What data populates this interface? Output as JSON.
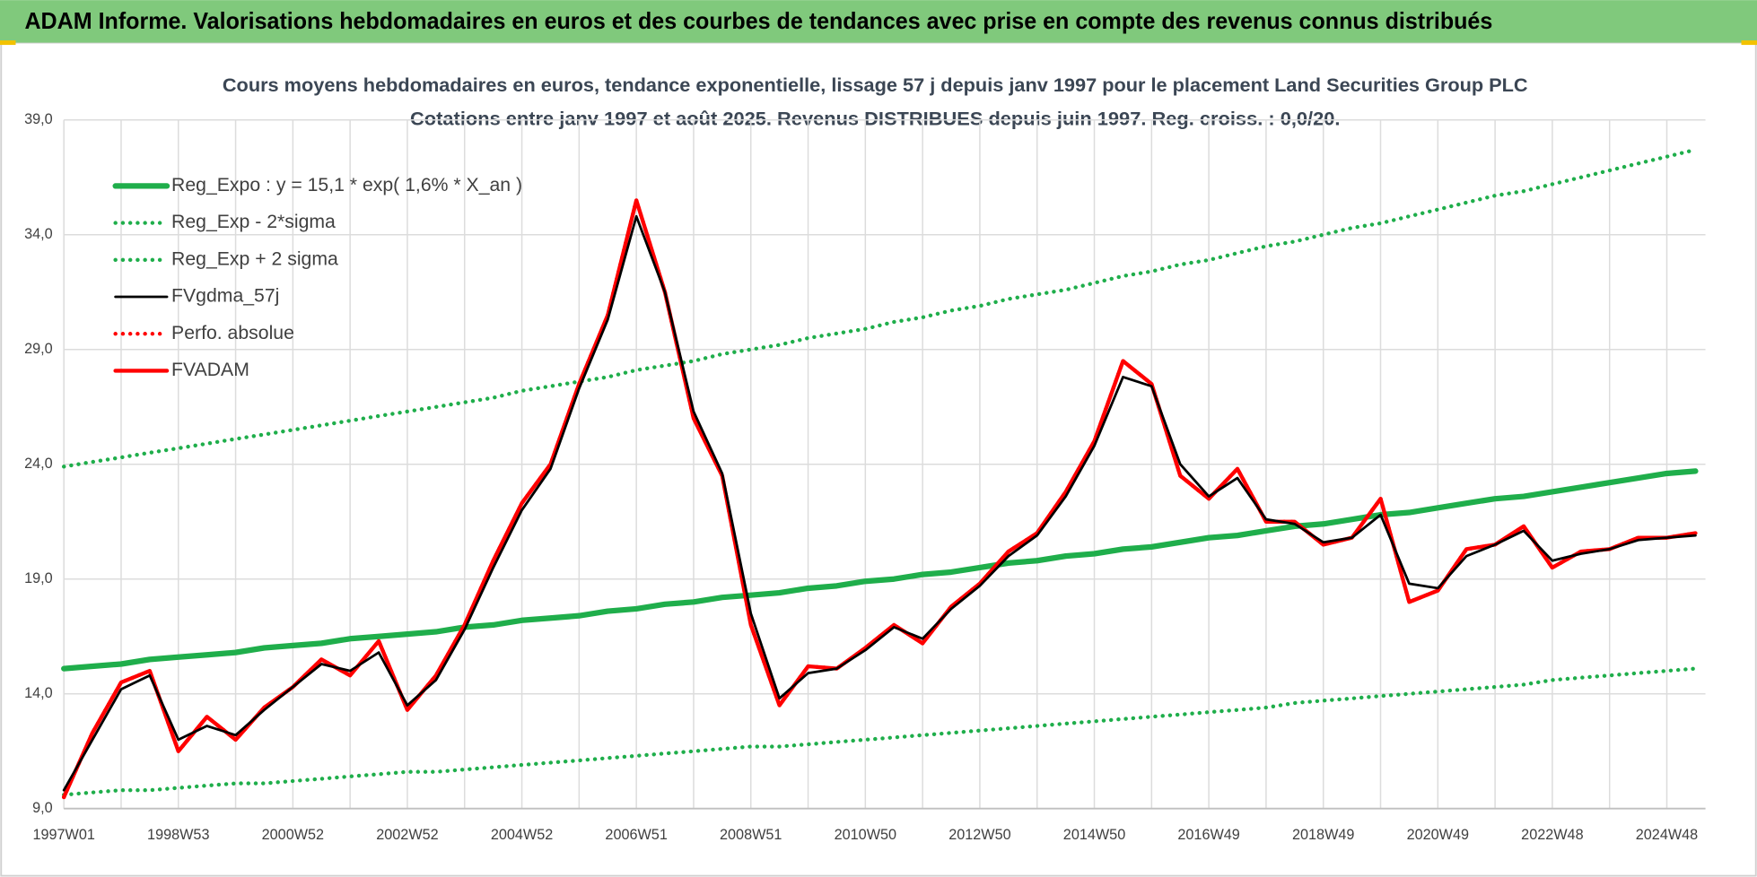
{
  "banner": "ADAM Informe. Valorisations hebdomadaires en euros et des courbes de tendances avec prise en compte des revenus connus distribués",
  "chart_data": {
    "type": "line",
    "title": "Cours moyens hebdomadaires en euros, tendance exponentielle, lissage 57 j depuis janv 1997 pour le placement Land Securities  Group PLC",
    "subtitle": "Cotations entre janv 1997 et août 2025.  Revenus DISTRIBUES depuis juin 1997.  Reg. croiss. : 0,0/20.",
    "categories": [
      "1997W01",
      null,
      null,
      null,
      "1998W53",
      null,
      null,
      null,
      "2000W52",
      null,
      null,
      null,
      "2002W52",
      null,
      null,
      null,
      "2004W52",
      null,
      null,
      null,
      "2006W51",
      null,
      null,
      null,
      "2008W51",
      null,
      null,
      null,
      "2010W50",
      null,
      null,
      null,
      "2012W50",
      null,
      null,
      null,
      "2014W50",
      null,
      null,
      null,
      "2016W49",
      null,
      null,
      null,
      "2018W49",
      null,
      null,
      null,
      "2020W49",
      null,
      null,
      null,
      "2022W48",
      null,
      null,
      null,
      "2024W48",
      null
    ],
    "ylim": [
      9,
      39
    ],
    "yticks": [
      {
        "value": 9,
        "label": "9,0"
      },
      {
        "value": 14,
        "label": "14,0"
      },
      {
        "value": 19,
        "label": "19,0"
      },
      {
        "value": 24,
        "label": "24,0"
      },
      {
        "value": 29,
        "label": "29,0"
      },
      {
        "value": 34,
        "label": "34,0"
      },
      {
        "value": 39,
        "label": "39,0"
      }
    ],
    "grid": true,
    "legend": "upper left",
    "series": [
      {
        "name": "Reg_Expo : y = 15,1 * exp( 1,6% *  X_an )",
        "color": "#1fae4b",
        "line_style": "solid",
        "values": [
          15.1,
          15.2,
          15.3,
          15.5,
          15.6,
          15.7,
          15.8,
          16.0,
          16.1,
          16.2,
          16.4,
          16.5,
          16.6,
          16.7,
          16.9,
          17.0,
          17.2,
          17.3,
          17.4,
          17.6,
          17.7,
          17.9,
          18.0,
          18.2,
          18.3,
          18.4,
          18.6,
          18.7,
          18.9,
          19.0,
          19.2,
          19.3,
          19.5,
          19.7,
          19.8,
          20.0,
          20.1,
          20.3,
          20.4,
          20.6,
          20.8,
          20.9,
          21.1,
          21.3,
          21.4,
          21.6,
          21.8,
          21.9,
          22.1,
          22.3,
          22.5,
          22.6,
          22.8,
          23.0,
          23.2,
          23.4,
          23.6,
          23.7
        ]
      },
      {
        "name": "Reg_Exp - 2*sigma",
        "color": "#1fae4b",
        "line_style": "dotted",
        "values": [
          9.6,
          9.7,
          9.8,
          9.8,
          9.9,
          10.0,
          10.1,
          10.1,
          10.2,
          10.3,
          10.4,
          10.5,
          10.6,
          10.6,
          10.7,
          10.8,
          10.9,
          11.0,
          11.1,
          11.2,
          11.3,
          11.4,
          11.5,
          11.6,
          11.7,
          11.7,
          11.8,
          11.9,
          12.0,
          12.1,
          12.2,
          12.3,
          12.4,
          12.5,
          12.6,
          12.7,
          12.8,
          12.9,
          13.0,
          13.1,
          13.2,
          13.3,
          13.4,
          13.6,
          13.7,
          13.8,
          13.9,
          14.0,
          14.1,
          14.2,
          14.3,
          14.4,
          14.6,
          14.7,
          14.8,
          14.9,
          15.0,
          15.1
        ]
      },
      {
        "name": "Reg_Exp + 2 sigma",
        "color": "#1fae4b",
        "line_style": "dotted",
        "values": [
          23.9,
          24.1,
          24.3,
          24.5,
          24.7,
          24.9,
          25.1,
          25.3,
          25.5,
          25.7,
          25.9,
          26.1,
          26.3,
          26.5,
          26.7,
          26.9,
          27.2,
          27.4,
          27.6,
          27.8,
          28.1,
          28.3,
          28.5,
          28.8,
          29.0,
          29.2,
          29.5,
          29.7,
          29.9,
          30.2,
          30.4,
          30.7,
          30.9,
          31.2,
          31.4,
          31.6,
          31.9,
          32.2,
          32.4,
          32.7,
          32.9,
          33.2,
          33.5,
          33.7,
          34.0,
          34.3,
          34.5,
          34.8,
          35.1,
          35.4,
          35.7,
          35.9,
          36.2,
          36.5,
          36.8,
          37.1,
          37.4,
          37.7
        ]
      },
      {
        "name": "FVgdma_57j",
        "color": "#000000",
        "line_style": "solid",
        "values": [
          9.8,
          12.0,
          14.2,
          14.8,
          12.0,
          12.6,
          12.2,
          13.3,
          14.3,
          15.3,
          15.0,
          15.8,
          13.5,
          14.6,
          16.8,
          19.5,
          22.0,
          23.8,
          27.3,
          30.3,
          34.8,
          31.5,
          26.3,
          23.6,
          17.5,
          13.8,
          14.9,
          15.1,
          15.9,
          16.9,
          16.4,
          17.7,
          18.7,
          20.0,
          20.9,
          22.6,
          24.8,
          27.8,
          27.4,
          24.0,
          22.6,
          23.4,
          21.6,
          21.4,
          20.6,
          20.8,
          21.8,
          18.8,
          18.6,
          20.0,
          20.5,
          21.1,
          19.8,
          20.1,
          20.3,
          20.7,
          20.8,
          20.9
        ]
      },
      {
        "name": "Perfo. absolue",
        "color": "#ff0000",
        "line_style": "dotted",
        "values": [
          9.5,
          12.3,
          14.5,
          15.0,
          11.5,
          13.0,
          12.0,
          13.4,
          14.3,
          15.5,
          14.8,
          16.3,
          13.3,
          14.8,
          17.0,
          19.8,
          22.3,
          24.0,
          27.5,
          30.5,
          35.5,
          31.5,
          26.0,
          23.5,
          17.0,
          13.5,
          15.2,
          15.1,
          16.0,
          17.0,
          16.2,
          17.8,
          18.8,
          20.2,
          21.0,
          22.8,
          25.0,
          28.5,
          27.5,
          23.5,
          22.5,
          23.8,
          21.5,
          21.5,
          20.5,
          20.8,
          22.5,
          18.0,
          18.5,
          20.3,
          20.5,
          21.3,
          19.5,
          20.2,
          20.3,
          20.8,
          20.8,
          21.0
        ]
      },
      {
        "name": "FVADAM",
        "color": "#ff0000",
        "line_style": "solid",
        "values": [
          9.5,
          12.3,
          14.5,
          15.0,
          11.5,
          13.0,
          12.0,
          13.4,
          14.3,
          15.5,
          14.8,
          16.3,
          13.3,
          14.8,
          17.0,
          19.8,
          22.3,
          24.0,
          27.5,
          30.5,
          35.5,
          31.5,
          26.0,
          23.5,
          17.0,
          13.5,
          15.2,
          15.1,
          16.0,
          17.0,
          16.2,
          17.8,
          18.8,
          20.2,
          21.0,
          22.8,
          25.0,
          28.5,
          27.5,
          23.5,
          22.5,
          23.8,
          21.5,
          21.5,
          20.5,
          20.8,
          22.5,
          18.0,
          18.5,
          20.3,
          20.5,
          21.3,
          19.5,
          20.2,
          20.3,
          20.8,
          20.8,
          21.0
        ]
      }
    ]
  }
}
